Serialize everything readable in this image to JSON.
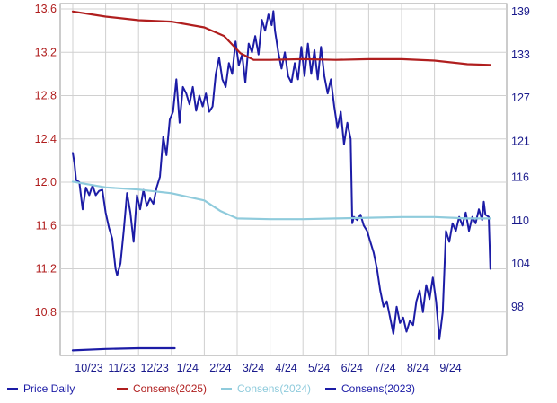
{
  "chart_data": {
    "type": "line",
    "title": "",
    "xlabel": "",
    "ylabel": "",
    "x_ticks": [
      "10/23",
      "11/23",
      "12/23",
      "1/24",
      "2/24",
      "3/24",
      "4/24",
      "5/24",
      "6/24",
      "7/24",
      "8/24",
      "9/24"
    ],
    "left_axis": {
      "range": [
        10.4,
        13.65
      ],
      "ticks": [
        "10.8",
        "11.2",
        "11.6",
        "12.0",
        "12.4",
        "12.8",
        "13.2",
        "13.6"
      ]
    },
    "right_axis": {
      "range": [
        91.3,
        140.1
      ],
      "ticks": [
        "98",
        "104",
        "110",
        "116",
        "121",
        "127",
        "133",
        "139"
      ]
    },
    "grid": true,
    "legend_position": "bottom",
    "series": [
      {
        "name": "Price Daily",
        "axis": "left",
        "color": "#1c1ca6",
        "points": [
          [
            0.0,
            12.27
          ],
          [
            0.05,
            12.18
          ],
          [
            0.1,
            12.02
          ],
          [
            0.2,
            12.0
          ],
          [
            0.3,
            11.75
          ],
          [
            0.4,
            11.95
          ],
          [
            0.5,
            11.88
          ],
          [
            0.6,
            11.97
          ],
          [
            0.7,
            11.88
          ],
          [
            0.8,
            11.92
          ],
          [
            0.9,
            11.93
          ],
          [
            1.0,
            11.72
          ],
          [
            1.1,
            11.58
          ],
          [
            1.2,
            11.48
          ],
          [
            1.3,
            11.2
          ],
          [
            1.35,
            11.14
          ],
          [
            1.45,
            11.25
          ],
          [
            1.55,
            11.55
          ],
          [
            1.65,
            11.9
          ],
          [
            1.75,
            11.72
          ],
          [
            1.85,
            11.45
          ],
          [
            1.95,
            11.88
          ],
          [
            2.05,
            11.75
          ],
          [
            2.15,
            11.93
          ],
          [
            2.25,
            11.78
          ],
          [
            2.35,
            11.85
          ],
          [
            2.45,
            11.8
          ],
          [
            2.55,
            11.95
          ],
          [
            2.65,
            12.05
          ],
          [
            2.75,
            12.42
          ],
          [
            2.85,
            12.25
          ],
          [
            2.95,
            12.58
          ],
          [
            3.05,
            12.65
          ],
          [
            3.15,
            12.95
          ],
          [
            3.25,
            12.55
          ],
          [
            3.35,
            12.88
          ],
          [
            3.45,
            12.82
          ],
          [
            3.55,
            12.72
          ],
          [
            3.65,
            12.88
          ],
          [
            3.75,
            12.66
          ],
          [
            3.85,
            12.8
          ],
          [
            3.95,
            12.7
          ],
          [
            4.05,
            12.82
          ],
          [
            4.15,
            12.65
          ],
          [
            4.25,
            12.7
          ],
          [
            4.35,
            13.0
          ],
          [
            4.45,
            13.15
          ],
          [
            4.55,
            12.95
          ],
          [
            4.65,
            12.88
          ],
          [
            4.75,
            13.1
          ],
          [
            4.85,
            13.0
          ],
          [
            4.95,
            13.3
          ],
          [
            5.05,
            13.08
          ],
          [
            5.15,
            13.18
          ],
          [
            5.25,
            12.92
          ],
          [
            5.35,
            13.28
          ],
          [
            5.45,
            13.2
          ],
          [
            5.55,
            13.35
          ],
          [
            5.65,
            13.18
          ],
          [
            5.75,
            13.5
          ],
          [
            5.85,
            13.4
          ],
          [
            5.95,
            13.55
          ],
          [
            6.05,
            13.45
          ],
          [
            6.1,
            13.58
          ],
          [
            6.15,
            13.4
          ],
          [
            6.25,
            13.2
          ],
          [
            6.35,
            13.05
          ],
          [
            6.45,
            13.2
          ],
          [
            6.55,
            12.98
          ],
          [
            6.65,
            12.92
          ],
          [
            6.75,
            13.1
          ],
          [
            6.85,
            12.95
          ],
          [
            6.95,
            13.25
          ],
          [
            7.05,
            12.98
          ],
          [
            7.15,
            13.28
          ],
          [
            7.25,
            13.0
          ],
          [
            7.35,
            13.22
          ],
          [
            7.45,
            12.95
          ],
          [
            7.55,
            13.25
          ],
          [
            7.65,
            12.98
          ],
          [
            7.75,
            12.82
          ],
          [
            7.85,
            12.95
          ],
          [
            7.95,
            12.7
          ],
          [
            8.05,
            12.5
          ],
          [
            8.15,
            12.65
          ],
          [
            8.25,
            12.35
          ],
          [
            8.35,
            12.55
          ],
          [
            8.45,
            12.4
          ],
          [
            8.5,
            11.62
          ],
          [
            8.55,
            11.68
          ],
          [
            8.65,
            11.65
          ],
          [
            8.75,
            11.7
          ],
          [
            8.85,
            11.6
          ],
          [
            8.95,
            11.55
          ],
          [
            9.05,
            11.45
          ],
          [
            9.15,
            11.35
          ],
          [
            9.25,
            11.2
          ],
          [
            9.35,
            11.0
          ],
          [
            9.45,
            10.85
          ],
          [
            9.55,
            10.9
          ],
          [
            9.65,
            10.75
          ],
          [
            9.75,
            10.6
          ],
          [
            9.85,
            10.85
          ],
          [
            9.95,
            10.7
          ],
          [
            10.05,
            10.75
          ],
          [
            10.15,
            10.62
          ],
          [
            10.25,
            10.72
          ],
          [
            10.35,
            10.68
          ],
          [
            10.45,
            10.9
          ],
          [
            10.55,
            11.0
          ],
          [
            10.65,
            10.8
          ],
          [
            10.75,
            11.05
          ],
          [
            10.85,
            10.92
          ],
          [
            10.95,
            11.12
          ],
          [
            11.05,
            10.9
          ],
          [
            11.15,
            10.55
          ],
          [
            11.25,
            10.8
          ],
          [
            11.35,
            11.55
          ],
          [
            11.45,
            11.45
          ],
          [
            11.55,
            11.62
          ],
          [
            11.65,
            11.55
          ],
          [
            11.75,
            11.68
          ],
          [
            11.85,
            11.6
          ],
          [
            11.95,
            11.72
          ],
          [
            12.05,
            11.55
          ],
          [
            12.15,
            11.68
          ],
          [
            12.25,
            11.62
          ],
          [
            12.35,
            11.75
          ],
          [
            12.45,
            11.65
          ],
          [
            12.5,
            11.82
          ],
          [
            12.55,
            11.7
          ],
          [
            12.65,
            11.68
          ],
          [
            12.7,
            11.2
          ]
        ]
      },
      {
        "name": "Consens(2025)",
        "axis": "right",
        "color": "#b01e1e",
        "points": [
          [
            0.0,
            139
          ],
          [
            1.0,
            138.3
          ],
          [
            2.0,
            137.8
          ],
          [
            3.0,
            137.6
          ],
          [
            4.0,
            136.8
          ],
          [
            4.6,
            135.6
          ],
          [
            5.1,
            133.2
          ],
          [
            5.5,
            132.3
          ],
          [
            6.0,
            132.3
          ],
          [
            7.0,
            132.4
          ],
          [
            8.0,
            132.3
          ],
          [
            9.0,
            132.4
          ],
          [
            10.0,
            132.4
          ],
          [
            11.0,
            132.2
          ],
          [
            12.0,
            131.7
          ],
          [
            12.7,
            131.6
          ]
        ]
      },
      {
        "name": "Consens(2024)",
        "axis": "right",
        "color": "#8fcbdc",
        "points": [
          [
            0.0,
            115.4
          ],
          [
            1.0,
            114.6
          ],
          [
            2.0,
            114.3
          ],
          [
            3.0,
            113.8
          ],
          [
            4.0,
            112.8
          ],
          [
            4.5,
            111.3
          ],
          [
            5.0,
            110.3
          ],
          [
            6.0,
            110.2
          ],
          [
            7.0,
            110.2
          ],
          [
            8.0,
            110.3
          ],
          [
            9.0,
            110.4
          ],
          [
            10.0,
            110.5
          ],
          [
            11.0,
            110.5
          ],
          [
            12.0,
            110.3
          ],
          [
            12.7,
            110.3
          ]
        ]
      },
      {
        "name": "Consens(2023)",
        "axis": "right",
        "color": "#1c1ca6",
        "points": [
          [
            0.0,
            92.0
          ],
          [
            1.0,
            92.2
          ],
          [
            2.0,
            92.3
          ],
          [
            3.1,
            92.3
          ]
        ]
      }
    ]
  }
}
